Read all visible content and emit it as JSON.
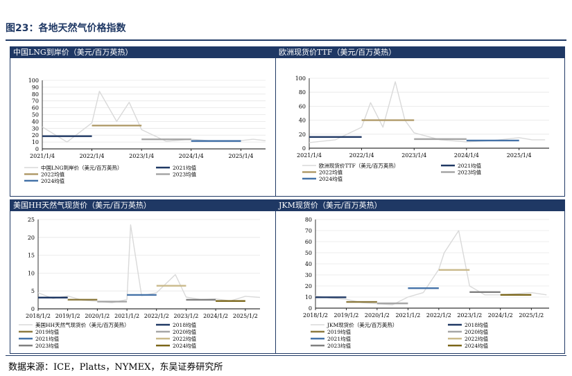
{
  "figure": {
    "title": "图23：各地天然气价格指数",
    "source": "数据来源：ICE，Platts，NYMEX，东吴证券研究所"
  },
  "colors": {
    "header_bg": "#1f3864",
    "price_line": "#d9d9d9",
    "grid": "#e6e6e6"
  },
  "chart_data": [
    {
      "type": "line",
      "title": "中国LNG到岸价（美元/百万英热）",
      "x": [
        "2021/1/4",
        "2021/7/5",
        "2022/1/4",
        "2022/2/28",
        "2022/7/5",
        "2022/10/5",
        "2023/1/4",
        "2023/7/5",
        "2024/1/4",
        "2024/7/5",
        "2025/1/4",
        "2025/4/4",
        "2025/7/4"
      ],
      "x_ticks": [
        "2021/1/4",
        "2022/1/4",
        "2023/1/4",
        "2024/1/4",
        "2025/1/4"
      ],
      "ylim": [
        0,
        100
      ],
      "y_ticks": [
        0,
        10,
        20,
        30,
        40,
        50,
        60,
        70,
        80,
        90,
        100
      ],
      "series": [
        {
          "name": "中国LNG到岸价（美元/百万英热）",
          "color": "#d9d9d9",
          "values": [
            32,
            10,
            38,
            84,
            40,
            68,
            28,
            11,
            14,
            11,
            12,
            14,
            12
          ]
        }
      ],
      "averages": [
        {
          "name": "2021均值",
          "color": "#1f3864",
          "value": 18.5,
          "start": "2021/1/4",
          "end": "2022/1/4"
        },
        {
          "name": "2022均值",
          "color": "#b09b6a",
          "value": 34,
          "start": "2022/1/4",
          "end": "2023/1/4"
        },
        {
          "name": "2023均值",
          "color": "#a6a6a6",
          "value": 14,
          "start": "2023/1/4",
          "end": "2024/1/4"
        },
        {
          "name": "2024均值",
          "color": "#4472a8",
          "value": 11.5,
          "start": "2024/1/4",
          "end": "2025/1/4"
        }
      ]
    },
    {
      "type": "line",
      "title": "欧洲现货价TTF（美元/百万英热）",
      "x": [
        "2021/1/4",
        "2021/7/5",
        "2022/1/4",
        "2022/3/7",
        "2022/6/1",
        "2022/8/26",
        "2022/11/1",
        "2023/1/4",
        "2023/7/5",
        "2024/1/4",
        "2024/7/5",
        "2025/1/4",
        "2025/4/4",
        "2025/7/4"
      ],
      "x_ticks": [
        "2021/1/4",
        "2022/1/4",
        "2023/1/4",
        "2024/1/4",
        "2025/1/4"
      ],
      "ylim": [
        0,
        100
      ],
      "y_ticks": [
        0,
        20,
        40,
        60,
        80,
        100
      ],
      "series": [
        {
          "name": "欧洲现货价TTF（美元/百万英热）",
          "color": "#d9d9d9",
          "values": [
            8,
            12,
            30,
            65,
            30,
            95,
            40,
            22,
            12,
            9,
            11,
            15,
            12,
            12
          ]
        }
      ],
      "averages": [
        {
          "name": "2021均值",
          "color": "#1f3864",
          "value": 16,
          "start": "2021/1/4",
          "end": "2022/1/4"
        },
        {
          "name": "2022均值",
          "color": "#b09b6a",
          "value": 40,
          "start": "2022/1/4",
          "end": "2023/1/4"
        },
        {
          "name": "2023均值",
          "color": "#a6a6a6",
          "value": 13,
          "start": "2023/1/4",
          "end": "2024/1/4"
        },
        {
          "name": "2024均值",
          "color": "#4472a8",
          "value": 11,
          "start": "2024/1/4",
          "end": "2025/1/4"
        }
      ]
    },
    {
      "type": "line",
      "title": "美国HH天然气现货价（美元/百万英热）",
      "x": [
        "2018/1/2",
        "2018/7/2",
        "2019/1/2",
        "2019/7/2",
        "2020/1/2",
        "2020/7/2",
        "2021/1/2",
        "2021/2/16",
        "2021/7/2",
        "2022/1/2",
        "2022/8/22",
        "2023/1/2",
        "2023/7/2",
        "2024/1/2",
        "2024/7/2",
        "2025/1/2",
        "2025/7/2"
      ],
      "x_ticks": [
        "2018/1/2",
        "2019/1/2",
        "2020/1/2",
        "2021/1/2",
        "2022/1/2",
        "2023/1/2",
        "2024/1/2",
        "2025/1/2"
      ],
      "ylim": [
        0,
        25
      ],
      "y_ticks": [
        0,
        5,
        10,
        15,
        20,
        25
      ],
      "series": [
        {
          "name": "美国HH天然气现货价（美元/百万英热）",
          "color": "#d9d9d9",
          "values": [
            4.5,
            2.9,
            3.6,
            2.4,
            2.1,
            1.7,
            2.6,
            23.5,
            3.7,
            4.5,
            9.6,
            3.3,
            2.6,
            2.8,
            2.2,
            3.5,
            3.2
          ]
        }
      ],
      "averages": [
        {
          "name": "2018均值",
          "color": "#1f3864",
          "value": 3.15,
          "start": "2018/1/2",
          "end": "2019/1/2"
        },
        {
          "name": "2019均值",
          "color": "#8c7a3f",
          "value": 2.56,
          "start": "2019/1/2",
          "end": "2020/1/2"
        },
        {
          "name": "2020均值",
          "color": "#a6a6a6",
          "value": 2.03,
          "start": "2020/1/2",
          "end": "2021/1/2"
        },
        {
          "name": "2021均值",
          "color": "#4472a8",
          "value": 3.89,
          "start": "2021/1/2",
          "end": "2022/1/2"
        },
        {
          "name": "2022均值",
          "color": "#c9b98a",
          "value": 6.45,
          "start": "2022/1/2",
          "end": "2023/1/2"
        },
        {
          "name": "2023均值",
          "color": "#7f7f7f",
          "value": 2.53,
          "start": "2023/1/2",
          "end": "2024/1/2"
        },
        {
          "name": "2024均值",
          "color": "#7a6518",
          "value": 2.19,
          "start": "2024/1/2",
          "end": "2025/1/2"
        }
      ]
    },
    {
      "type": "line",
      "title": "JKM现货价（美元/百万英热）",
      "x": [
        "2018/1/2",
        "2018/7/2",
        "2019/1/2",
        "2019/7/2",
        "2020/1/2",
        "2020/7/2",
        "2021/1/2",
        "2021/7/2",
        "2022/1/2",
        "2022/3/7",
        "2022/8/26",
        "2023/1/2",
        "2023/7/2",
        "2024/1/2",
        "2024/7/2",
        "2025/1/2",
        "2025/7/2"
      ],
      "x_ticks": [
        "2018/1/2",
        "2019/1/2",
        "2020/1/2",
        "2021/1/2",
        "2022/1/2",
        "2023/1/2",
        "2024/1/2",
        "2025/1/2"
      ],
      "ylim": [
        0,
        80
      ],
      "y_ticks": [
        0,
        10,
        20,
        30,
        40,
        50,
        60,
        70,
        80
      ],
      "series": [
        {
          "name": "JKM现货价（美元/百万英热）",
          "color": "#d9d9d9",
          "values": [
            11,
            9,
            8,
            5,
            4,
            3,
            10,
            14,
            35,
            50,
            70,
            20,
            12,
            12,
            13,
            14,
            12
          ]
        }
      ],
      "averages": [
        {
          "name": "2018均值",
          "color": "#1f3864",
          "value": 9.8,
          "start": "2018/1/2",
          "end": "2019/1/2"
        },
        {
          "name": "2019均值",
          "color": "#8c7a3f",
          "value": 5.6,
          "start": "2019/1/2",
          "end": "2020/1/2"
        },
        {
          "name": "2020均值",
          "color": "#a6a6a6",
          "value": 4.3,
          "start": "2020/1/2",
          "end": "2021/1/2"
        },
        {
          "name": "2021均值",
          "color": "#4472a8",
          "value": 18,
          "start": "2021/1/2",
          "end": "2022/1/2"
        },
        {
          "name": "2022均值",
          "color": "#c9b98a",
          "value": 34.5,
          "start": "2022/1/2",
          "end": "2023/1/2"
        },
        {
          "name": "2023均值",
          "color": "#7f7f7f",
          "value": 14.5,
          "start": "2023/1/2",
          "end": "2024/1/2"
        },
        {
          "name": "2024均值",
          "color": "#7a6518",
          "value": 12,
          "start": "2024/1/2",
          "end": "2025/1/2"
        }
      ]
    }
  ]
}
